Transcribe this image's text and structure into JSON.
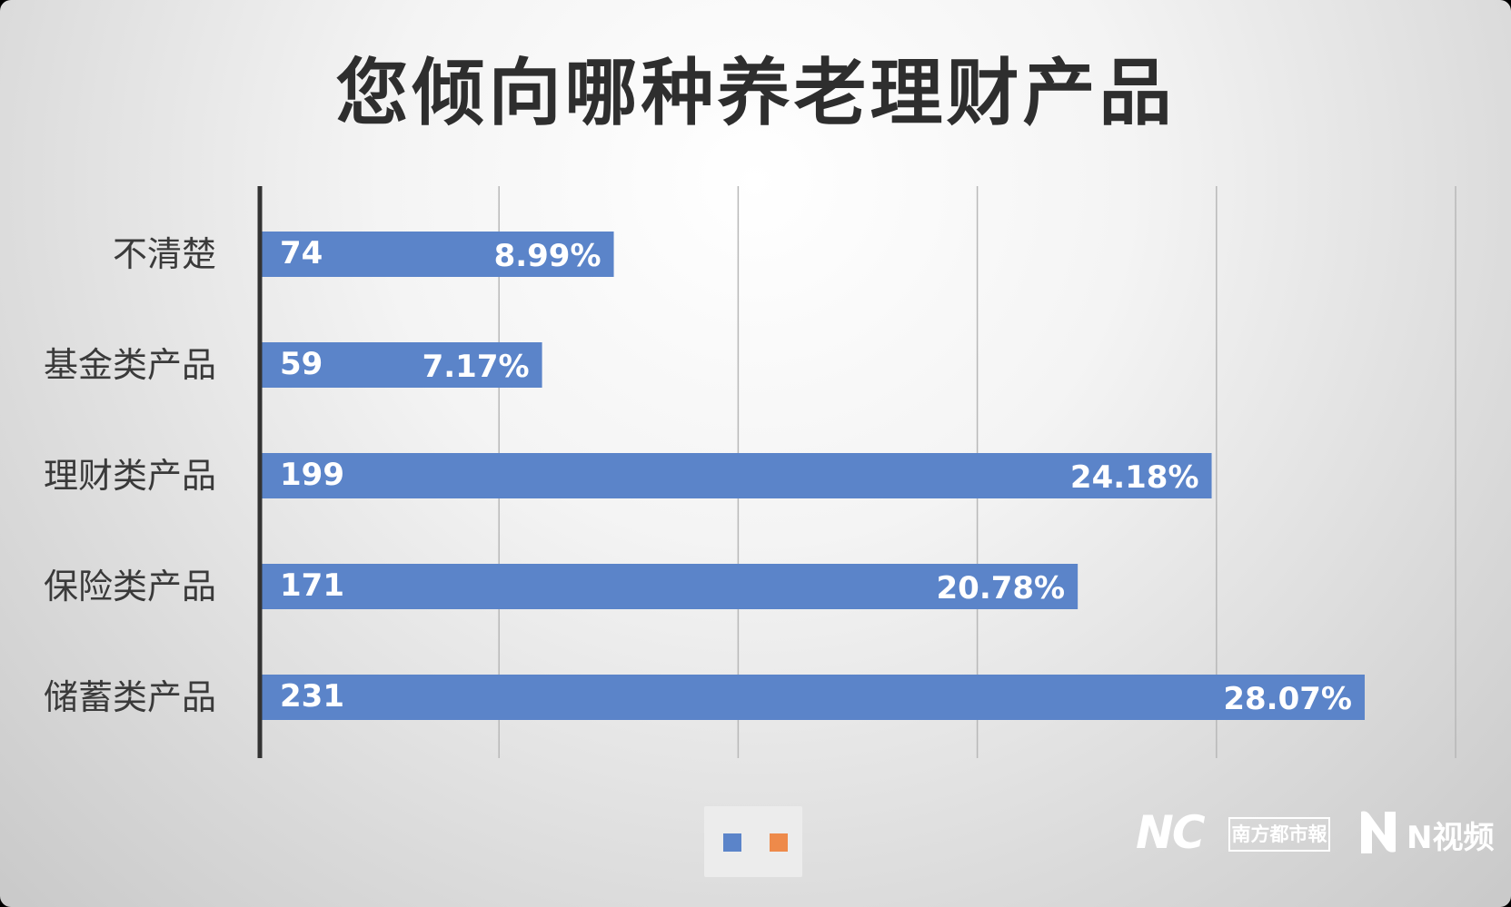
{
  "chart_data": {
    "type": "bar",
    "orientation": "horizontal",
    "title": "您倾向哪种养老理财产品",
    "categories": [
      "不清楚",
      "基金类产品",
      "理财类产品",
      "保险类产品",
      "储蓄类产品"
    ],
    "series": [
      {
        "values": [
          74,
          59,
          199,
          171,
          231
        ],
        "percent_labels": [
          "8.99%",
          "7.17%",
          "24.18%",
          "20.78%",
          "28.07%"
        ]
      }
    ],
    "xlim": [
      0,
      250
    ],
    "grid": true,
    "legend": "bottom",
    "colors": {
      "bar": "#5b84c9",
      "legend_swatches": [
        "#5b84c9",
        "#ee8a4a"
      ],
      "axis": "#333333",
      "grid": "#b8b8b8"
    }
  },
  "brand": {
    "nc_logo": "NC",
    "paper_name": "南方都市報",
    "n_logo_icon": "n-video-play-icon",
    "video_name": "N视频"
  }
}
